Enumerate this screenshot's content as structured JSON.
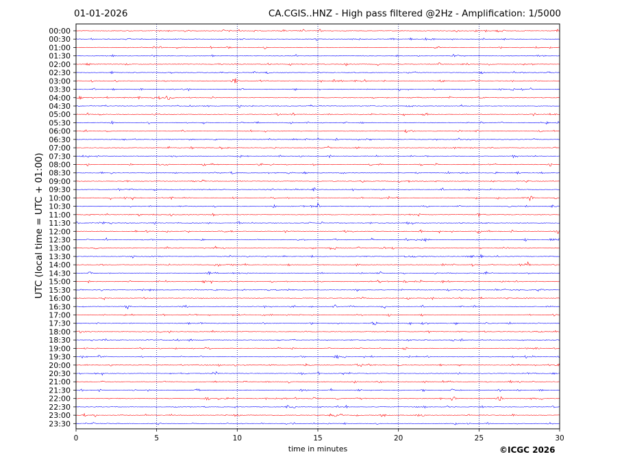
{
  "header": {
    "date": "01-01-2026",
    "title": "CA.CGIS..HNZ - High pass filtered @2Hz - Amplification: 1/5000"
  },
  "footer": {
    "copyright": "©ICGC 2026"
  },
  "chart_data": {
    "type": "line",
    "xlabel": "time in minutes",
    "ylabel": "UTC (local time = UTC + 01:00)",
    "xlim": [
      0,
      30
    ],
    "xticks": [
      0,
      5,
      10,
      15,
      20,
      25,
      30
    ],
    "xtick_labels": [
      "0",
      "5",
      "10",
      "15",
      "20",
      "25",
      "30"
    ],
    "vertical_dotted_gridlines_at": [
      5,
      10,
      15,
      20,
      25
    ],
    "row_labels": [
      "00:00",
      "00:30",
      "01:00",
      "01:30",
      "02:00",
      "02:30",
      "03:00",
      "03:30",
      "04:00",
      "04:30",
      "05:00",
      "05:30",
      "06:00",
      "06:30",
      "07:00",
      "07:30",
      "08:00",
      "08:30",
      "09:00",
      "09:30",
      "10:00",
      "10:30",
      "11:00",
      "11:30",
      "12:00",
      "12:30",
      "13:00",
      "13:30",
      "14:00",
      "14:30",
      "15:00",
      "15:30",
      "16:00",
      "16:30",
      "17:00",
      "17:30",
      "18:00",
      "18:30",
      "19:00",
      "19:30",
      "20:00",
      "20:30",
      "21:00",
      "21:30",
      "22:00",
      "22:30",
      "23:00",
      "23:30"
    ],
    "trace_colors": [
      "#ff0000",
      "#0000ff"
    ],
    "notable_events_minutes": [
      {
        "row": "01:00",
        "minute": 22.4
      },
      {
        "row": "03:00",
        "minute": 9.9
      },
      {
        "row": "04:00",
        "minute": 5.7
      },
      {
        "row": "08:00",
        "minute": 29.4
      },
      {
        "row": "09:30",
        "minute": 14.8
      },
      {
        "row": "10:00",
        "minute": 28.2
      },
      {
        "row": "10:30",
        "minute": 15.0
      },
      {
        "row": "12:00",
        "minute": 29.9
      },
      {
        "row": "14:00",
        "minute": 28.0
      },
      {
        "row": "14:30",
        "minute": 8.2
      },
      {
        "row": "16:30",
        "minute": 3.2
      },
      {
        "row": "16:30",
        "minute": 16.1
      },
      {
        "row": "17:30",
        "minute": 18.5
      },
      {
        "row": "19:30",
        "minute": 16.2
      },
      {
        "row": "20:00",
        "minute": 29.9
      },
      {
        "row": "22:00",
        "minute": 23.4
      },
      {
        "row": "22:00",
        "minute": 26.3
      }
    ]
  }
}
